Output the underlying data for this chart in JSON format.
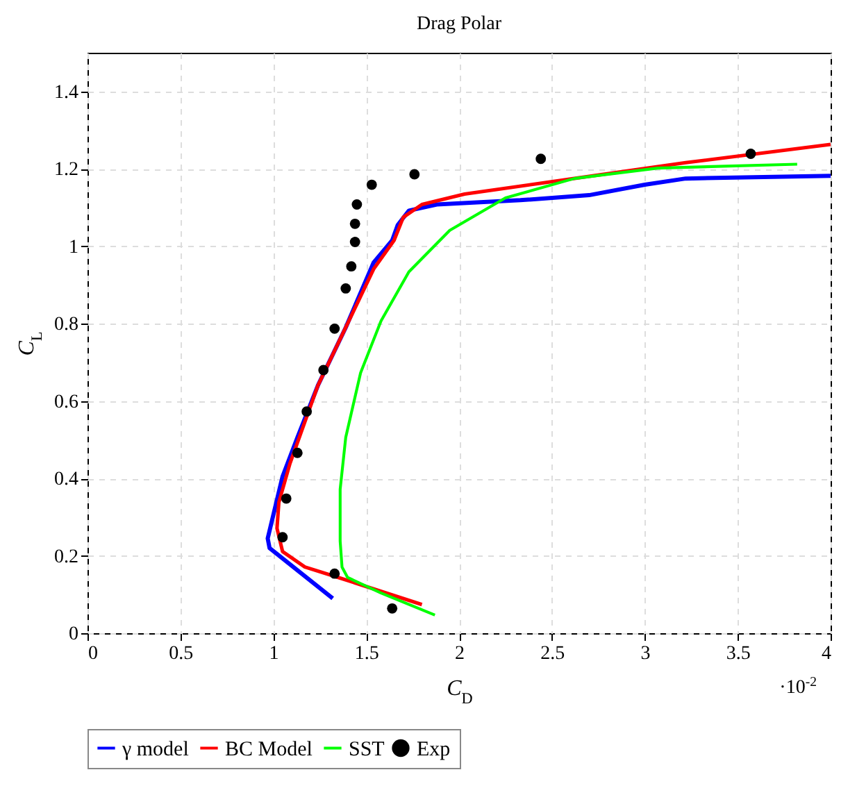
{
  "chart_data": {
    "type": "line",
    "title": "Drag Polar",
    "xlabel": "C$_{D}$",
    "ylabel": "C$_{L}$",
    "annotations": [
      "·10$^{-2}$"
    ],
    "xlim": [
      0,
      4
    ],
    "xticks": [
      0,
      0.5,
      1,
      1.5,
      2,
      2.5,
      3,
      3.5,
      4
    ],
    "ylim": [
      0,
      1.5
    ],
    "yticks": [
      0,
      0.2,
      0.4,
      0.6,
      0.8,
      1,
      1.2,
      1.4
    ],
    "grid": true,
    "legend": "bottom",
    "series": [
      {
        "name": "γ model",
        "color": "#0000ff",
        "x": [
          1.32,
          0.98,
          0.97,
          1.0,
          1.05,
          1.13,
          1.24,
          1.39,
          1.54,
          1.64,
          1.67,
          1.73,
          1.88,
          2.33,
          2.7,
          3.0,
          3.22,
          4.0
        ],
        "values": [
          0.09,
          0.22,
          0.245,
          0.305,
          0.405,
          0.506,
          0.64,
          0.79,
          0.958,
          1.015,
          1.055,
          1.092,
          1.108,
          1.119,
          1.132,
          1.159,
          1.175,
          1.182
        ]
      },
      {
        "name": "BC Model",
        "color": "#ff0000",
        "x": [
          1.8,
          1.35,
          1.17,
          1.05,
          1.02,
          1.03,
          1.09,
          1.24,
          1.39,
          1.54,
          1.65,
          1.7,
          1.8,
          2.03,
          2.47,
          3.22,
          4.0
        ],
        "values": [
          0.074,
          0.144,
          0.171,
          0.211,
          0.271,
          0.338,
          0.439,
          0.64,
          0.79,
          0.941,
          1.015,
          1.075,
          1.108,
          1.135,
          1.165,
          1.216,
          1.263
        ]
      },
      {
        "name": "SST",
        "color": "#00ff00",
        "x": [
          1.87,
          1.58,
          1.4,
          1.37,
          1.36,
          1.36,
          1.39,
          1.47,
          1.58,
          1.73,
          1.95,
          2.25,
          2.62,
          3.07,
          3.82
        ],
        "values": [
          0.047,
          0.104,
          0.144,
          0.171,
          0.238,
          0.372,
          0.506,
          0.673,
          0.807,
          0.934,
          1.041,
          1.125,
          1.175,
          1.202,
          1.212
        ]
      },
      {
        "name": "Exp",
        "type": "scatter",
        "color": "#000000",
        "x": [
          1.05,
          1.07,
          1.13,
          1.18,
          1.27,
          1.33,
          1.39,
          1.42,
          1.44,
          1.44,
          1.45,
          1.53,
          1.76,
          2.44,
          3.57,
          1.33,
          1.64
        ],
        "values": [
          0.248,
          0.348,
          0.466,
          0.573,
          0.68,
          0.787,
          0.891,
          0.948,
          1.011,
          1.058,
          1.108,
          1.159,
          1.186,
          1.226,
          1.239,
          0.154,
          0.064
        ]
      }
    ]
  }
}
